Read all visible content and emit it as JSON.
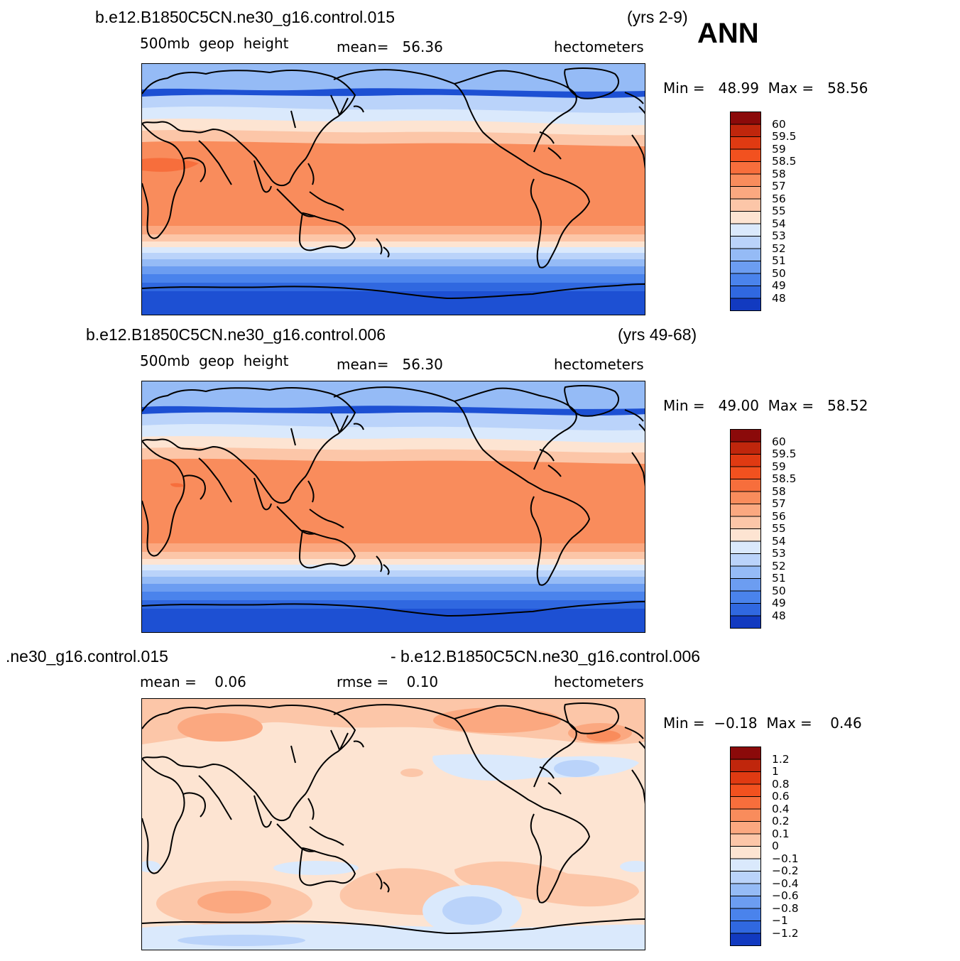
{
  "season": "ANN",
  "colors": {
    "warm": [
      "#fde4d2",
      "#fcc6a8",
      "#fba880",
      "#f98c5c",
      "#f76e3c",
      "#f2511f",
      "#e03a12",
      "#c0260c",
      "#8b0a0a"
    ],
    "cool": [
      "#dae9fc",
      "#bad3fa",
      "#95bbf6",
      "#6c9df1",
      "#4a83ec",
      "#3068e0",
      "#1d50d3",
      "#123ac0",
      "#0020a8",
      "#08107c"
    ],
    "coast": "#000000"
  },
  "panels": [
    {
      "case": "b.e12.B1850C5CN.ne30_g16.control.015",
      "years": "(yrs 2-9)",
      "variable": "500mb  geop  height",
      "stat": "mean=   56.36",
      "units": "hectometers",
      "minmax": "Min =   48.99  Max =   58.56",
      "levels": [
        "60",
        "59.5",
        "59",
        "58.5",
        "58",
        "57",
        "56",
        "55",
        "54",
        "53",
        "52",
        "51",
        "50",
        "49",
        "48"
      ]
    },
    {
      "case": "b.e12.B1850C5CN.ne30_g16.control.006",
      "years": "(yrs 49-68)",
      "variable": "500mb  geop  height",
      "stat": "mean=   56.30",
      "units": "hectometers",
      "minmax": "Min =   49.00  Max =   58.52",
      "levels": [
        "60",
        "59.5",
        "59",
        "58.5",
        "58",
        "57",
        "56",
        "55",
        "54",
        "53",
        "52",
        "51",
        "50",
        "49",
        "48"
      ]
    },
    {
      "case_left": ".ne30_g16.control.015",
      "case_right": "- b.e12.B1850C5CN.ne30_g16.control.006",
      "stat_mean": "mean =    0.06",
      "stat_rmse": "rmse =    0.10",
      "units": "hectometers",
      "minmax": "Min =  −0.18  Max =    0.46",
      "levels": [
        "1.2",
        "1",
        "0.8",
        "0.6",
        "0.4",
        "0.2",
        "0.1",
        "0",
        "−0.1",
        "−0.2",
        "−0.4",
        "−0.6",
        "−0.8",
        "−1",
        "−1.2"
      ]
    }
  ]
}
